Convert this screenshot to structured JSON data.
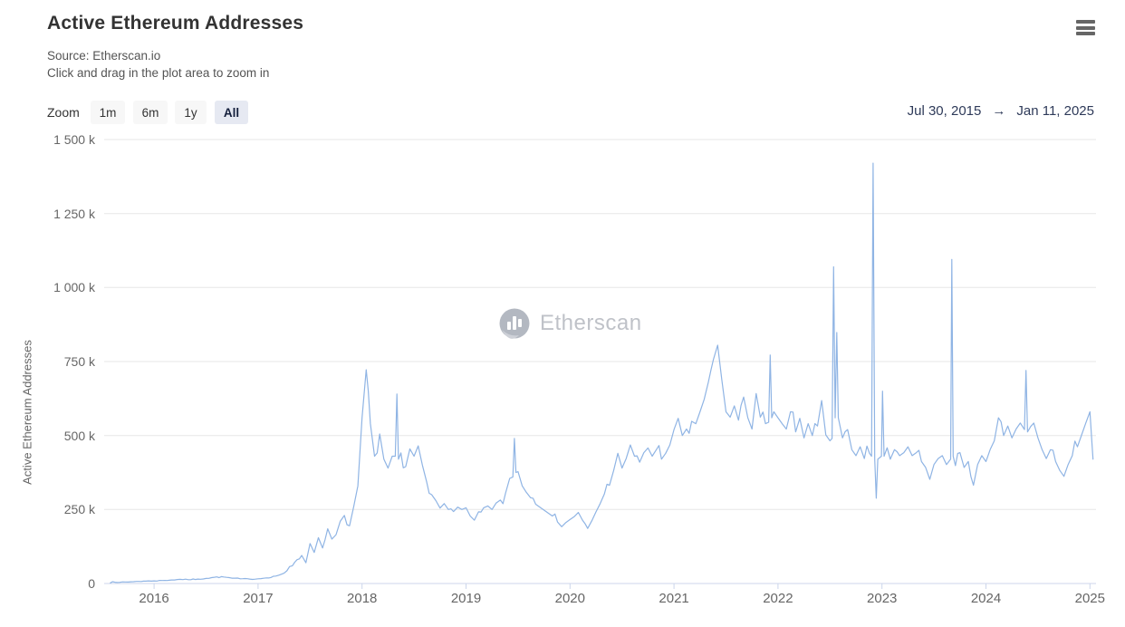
{
  "header": {
    "title": "Active Ethereum Addresses",
    "source_line": "Source: Etherscan.io",
    "hint_line": "Click and drag in the plot area to zoom in"
  },
  "icons": {
    "context_menu": "hamburger-icon",
    "watermark_logo": "etherscan-logo",
    "range_arrow": "arrow-right"
  },
  "controls": {
    "zoom_label": "Zoom",
    "zoom_buttons": [
      {
        "label": "1m",
        "active": false
      },
      {
        "label": "6m",
        "active": false
      },
      {
        "label": "1y",
        "active": false
      },
      {
        "label": "All",
        "active": true
      }
    ],
    "range": {
      "from": "Jul 30, 2015",
      "arrow": "→",
      "to": "Jan 11, 2025"
    }
  },
  "watermark": {
    "text": "Etherscan"
  },
  "colors": {
    "series_line": "#8fb4e4",
    "gridline": "#e7e7e7",
    "axis_line": "#ccd6eb",
    "text_muted": "#666666",
    "title_text": "#333333",
    "range_text": "#2e3a59",
    "button_bg": "#f7f7f7",
    "button_active_bg": "#e6e9f2"
  },
  "chart_data": {
    "type": "line",
    "title": "Active Ethereum Addresses",
    "xlabel": "",
    "ylabel": "Active Ethereum Addresses",
    "grid": "horizontal",
    "legend": "none",
    "x_range_years": [
      2015.52,
      2025.06
    ],
    "ylim_k": [
      0,
      1500
    ],
    "y_ticks": [
      {
        "label": "0",
        "value_k": 0
      },
      {
        "label": "250 k",
        "value_k": 250
      },
      {
        "label": "500 k",
        "value_k": 500
      },
      {
        "label": "750 k",
        "value_k": 750
      },
      {
        "label": "1 000 k",
        "value_k": 1000
      },
      {
        "label": "1 250 k",
        "value_k": 1250
      },
      {
        "label": "1 500 k",
        "value_k": 1500
      }
    ],
    "x_ticks": [
      2016,
      2017,
      2018,
      2019,
      2020,
      2021,
      2022,
      2023,
      2024,
      2025
    ],
    "series": [
      {
        "name": "Active Ethereum Addresses",
        "color": "#8fb4e4",
        "unit": "thousands of addresses",
        "points_t_valueK": [
          [
            2015.58,
            2
          ],
          [
            2015.6,
            6
          ],
          [
            2015.67,
            4
          ],
          [
            2015.75,
            5
          ],
          [
            2015.83,
            7
          ],
          [
            2015.92,
            8
          ],
          [
            2016.0,
            9
          ],
          [
            2016.08,
            10
          ],
          [
            2016.17,
            12
          ],
          [
            2016.25,
            14
          ],
          [
            2016.33,
            13
          ],
          [
            2016.42,
            15
          ],
          [
            2016.5,
            17
          ],
          [
            2016.58,
            21
          ],
          [
            2016.67,
            22
          ],
          [
            2016.75,
            18
          ],
          [
            2016.83,
            16
          ],
          [
            2016.92,
            15
          ],
          [
            2017.0,
            16
          ],
          [
            2017.08,
            19
          ],
          [
            2017.17,
            25
          ],
          [
            2017.25,
            35
          ],
          [
            2017.33,
            60
          ],
          [
            2017.42,
            95
          ],
          [
            2017.46,
            70
          ],
          [
            2017.5,
            135
          ],
          [
            2017.54,
            105
          ],
          [
            2017.58,
            155
          ],
          [
            2017.62,
            120
          ],
          [
            2017.67,
            185
          ],
          [
            2017.71,
            150
          ],
          [
            2017.75,
            165
          ],
          [
            2017.79,
            210
          ],
          [
            2017.83,
            230
          ],
          [
            2017.88,
            195
          ],
          [
            2017.92,
            260
          ],
          [
            2017.96,
            330
          ],
          [
            2018.0,
            560
          ],
          [
            2018.04,
            722
          ],
          [
            2018.06,
            650
          ],
          [
            2018.08,
            540
          ],
          [
            2018.12,
            430
          ],
          [
            2018.17,
            505
          ],
          [
            2018.21,
            420
          ],
          [
            2018.25,
            390
          ],
          [
            2018.29,
            430
          ],
          [
            2018.32,
            430
          ],
          [
            2018.335,
            640
          ],
          [
            2018.35,
            420
          ],
          [
            2018.42,
            395
          ],
          [
            2018.46,
            455
          ],
          [
            2018.5,
            430
          ],
          [
            2018.54,
            465
          ],
          [
            2018.58,
            400
          ],
          [
            2018.62,
            345
          ],
          [
            2018.67,
            300
          ],
          [
            2018.71,
            280
          ],
          [
            2018.75,
            255
          ],
          [
            2018.79,
            270
          ],
          [
            2018.83,
            250
          ],
          [
            2018.88,
            243
          ],
          [
            2018.92,
            258
          ],
          [
            2018.96,
            250
          ],
          [
            2019.0,
            256
          ],
          [
            2019.04,
            228
          ],
          [
            2019.08,
            214
          ],
          [
            2019.12,
            242
          ],
          [
            2019.17,
            256
          ],
          [
            2019.21,
            262
          ],
          [
            2019.25,
            250
          ],
          [
            2019.29,
            272
          ],
          [
            2019.33,
            282
          ],
          [
            2019.38,
            305
          ],
          [
            2019.42,
            355
          ],
          [
            2019.45,
            360
          ],
          [
            2019.465,
            490
          ],
          [
            2019.48,
            375
          ],
          [
            2019.5,
            378
          ],
          [
            2019.54,
            330
          ],
          [
            2019.58,
            308
          ],
          [
            2019.62,
            290
          ],
          [
            2019.67,
            268
          ],
          [
            2019.71,
            258
          ],
          [
            2019.75,
            248
          ],
          [
            2019.79,
            238
          ],
          [
            2019.83,
            228
          ],
          [
            2019.88,
            208
          ],
          [
            2019.92,
            192
          ],
          [
            2019.96,
            206
          ],
          [
            2020.0,
            216
          ],
          [
            2020.04,
            226
          ],
          [
            2020.08,
            240
          ],
          [
            2020.12,
            214
          ],
          [
            2020.17,
            186
          ],
          [
            2020.21,
            212
          ],
          [
            2020.25,
            242
          ],
          [
            2020.29,
            270
          ],
          [
            2020.33,
            302
          ],
          [
            2020.38,
            332
          ],
          [
            2020.42,
            382
          ],
          [
            2020.46,
            440
          ],
          [
            2020.5,
            390
          ],
          [
            2020.54,
            422
          ],
          [
            2020.58,
            468
          ],
          [
            2020.62,
            430
          ],
          [
            2020.67,
            410
          ],
          [
            2020.71,
            442
          ],
          [
            2020.75,
            458
          ],
          [
            2020.79,
            430
          ],
          [
            2020.83,
            452
          ],
          [
            2020.88,
            420
          ],
          [
            2020.92,
            440
          ],
          [
            2020.96,
            468
          ],
          [
            2021.0,
            520
          ],
          [
            2021.04,
            558
          ],
          [
            2021.08,
            500
          ],
          [
            2021.12,
            522
          ],
          [
            2021.17,
            548
          ],
          [
            2021.21,
            540
          ],
          [
            2021.25,
            580
          ],
          [
            2021.29,
            622
          ],
          [
            2021.33,
            680
          ],
          [
            2021.38,
            758
          ],
          [
            2021.42,
            805
          ],
          [
            2021.46,
            688
          ],
          [
            2021.5,
            580
          ],
          [
            2021.54,
            562
          ],
          [
            2021.58,
            600
          ],
          [
            2021.62,
            552
          ],
          [
            2021.67,
            630
          ],
          [
            2021.71,
            560
          ],
          [
            2021.75,
            522
          ],
          [
            2021.79,
            642
          ],
          [
            2021.83,
            562
          ],
          [
            2021.88,
            540
          ],
          [
            2021.91,
            545
          ],
          [
            2021.925,
            772
          ],
          [
            2021.94,
            560
          ],
          [
            2021.96,
            580
          ],
          [
            2022.0,
            560
          ],
          [
            2022.04,
            540
          ],
          [
            2022.08,
            522
          ],
          [
            2022.12,
            580
          ],
          [
            2022.17,
            512
          ],
          [
            2022.21,
            558
          ],
          [
            2022.25,
            492
          ],
          [
            2022.29,
            540
          ],
          [
            2022.33,
            500
          ],
          [
            2022.38,
            532
          ],
          [
            2022.42,
            618
          ],
          [
            2022.46,
            502
          ],
          [
            2022.5,
            482
          ],
          [
            2022.52,
            490
          ],
          [
            2022.535,
            1070
          ],
          [
            2022.55,
            560
          ],
          [
            2022.565,
            848
          ],
          [
            2022.58,
            560
          ],
          [
            2022.62,
            492
          ],
          [
            2022.67,
            520
          ],
          [
            2022.71,
            452
          ],
          [
            2022.75,
            432
          ],
          [
            2022.79,
            462
          ],
          [
            2022.83,
            422
          ],
          [
            2022.88,
            440
          ],
          [
            2022.9,
            430
          ],
          [
            2022.915,
            1420
          ],
          [
            2022.93,
            420
          ],
          [
            2022.945,
            288
          ],
          [
            2022.96,
            420
          ],
          [
            2022.995,
            430
          ],
          [
            2023.005,
            650
          ],
          [
            2023.02,
            430
          ],
          [
            2023.08,
            420
          ],
          [
            2023.12,
            452
          ],
          [
            2023.17,
            432
          ],
          [
            2023.21,
            442
          ],
          [
            2023.25,
            462
          ],
          [
            2023.29,
            432
          ],
          [
            2023.33,
            442
          ],
          [
            2023.38,
            412
          ],
          [
            2023.42,
            392
          ],
          [
            2023.46,
            352
          ],
          [
            2023.5,
            402
          ],
          [
            2023.54,
            422
          ],
          [
            2023.58,
            432
          ],
          [
            2023.62,
            402
          ],
          [
            2023.66,
            420
          ],
          [
            2023.672,
            1095
          ],
          [
            2023.685,
            430
          ],
          [
            2023.75,
            442
          ],
          [
            2023.79,
            392
          ],
          [
            2023.83,
            412
          ],
          [
            2023.88,
            332
          ],
          [
            2023.92,
            402
          ],
          [
            2023.96,
            432
          ],
          [
            2024.0,
            412
          ],
          [
            2024.04,
            452
          ],
          [
            2024.08,
            482
          ],
          [
            2024.12,
            560
          ],
          [
            2024.17,
            500
          ],
          [
            2024.21,
            532
          ],
          [
            2024.25,
            492
          ],
          [
            2024.29,
            522
          ],
          [
            2024.33,
            542
          ],
          [
            2024.37,
            520
          ],
          [
            2024.385,
            720
          ],
          [
            2024.4,
            512
          ],
          [
            2024.46,
            542
          ],
          [
            2024.5,
            492
          ],
          [
            2024.54,
            452
          ],
          [
            2024.58,
            422
          ],
          [
            2024.62,
            452
          ],
          [
            2024.67,
            412
          ],
          [
            2024.71,
            382
          ],
          [
            2024.75,
            362
          ],
          [
            2024.79,
            402
          ],
          [
            2024.83,
            432
          ],
          [
            2024.88,
            462
          ],
          [
            2024.92,
            502
          ],
          [
            2024.96,
            542
          ],
          [
            2025.0,
            580
          ],
          [
            2025.02,
            470
          ],
          [
            2025.03,
            420
          ]
        ]
      }
    ]
  }
}
